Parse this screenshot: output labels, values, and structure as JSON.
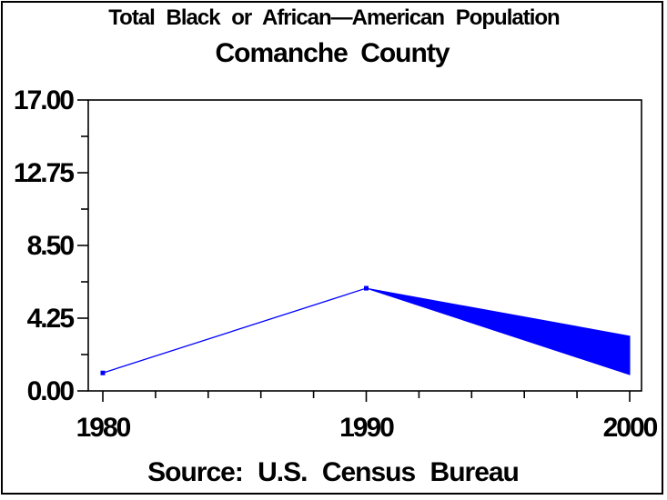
{
  "chart_data": {
    "type": "line",
    "title": "Total Black or African—American Population",
    "subtitle": "Comanche County",
    "footnote": "Source: U.S. Census Bureau",
    "xlabel": "",
    "ylabel": "",
    "xlim": [
      1980,
      2000
    ],
    "ylim": [
      0,
      17
    ],
    "grid": false,
    "legend": "none",
    "background_color": "#FFFFFF",
    "frame_color": "#000000",
    "x_ticks": [
      1980,
      1990,
      2000
    ],
    "x_tick_labels": [
      "1980",
      "1990",
      "2000"
    ],
    "x_minor_tick_step_years": 2,
    "y_ticks": [
      0,
      4.25,
      8.5,
      12.75,
      17
    ],
    "y_tick_labels": [
      "0.00",
      "4.25",
      "8.50",
      "12.75",
      "17.00"
    ],
    "y_minor_ticks": [
      2.125,
      6.375,
      10.625,
      14.875
    ],
    "series": [
      {
        "name": "population-line",
        "color": "#0000FF",
        "marker": "square",
        "x": [
          1980,
          1990
        ],
        "y": [
          1.05,
          6.0
        ]
      }
    ],
    "band": {
      "name": "value-range-wedge",
      "description": "solid filled wedge spreading from the 1990 point to a range of values at 2000",
      "color": "#0000FF",
      "x": [
        1990,
        2000
      ],
      "upper": [
        6.0,
        3.2
      ],
      "lower": [
        6.0,
        0.95
      ]
    }
  }
}
